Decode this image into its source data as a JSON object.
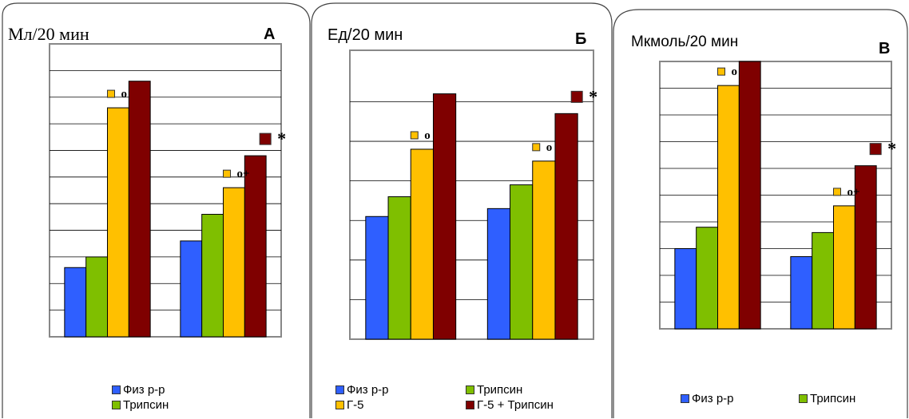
{
  "colors": {
    "fiz": "#2f5fff",
    "trypsin": "#7fbf00",
    "g5": "#ffc000",
    "g5_trypsin": "#7f0000"
  },
  "chart_data": [
    {
      "type": "bar",
      "panel_letter": "А",
      "unit_label": "Мл/20 мин",
      "ylim": [
        0,
        11
      ],
      "grid": true,
      "categories": [
        "",
        ""
      ],
      "series": [
        {
          "name": "Физ р-р",
          "color_key": "fiz",
          "values": [
            2.6,
            3.6
          ]
        },
        {
          "name": "Трипсин",
          "color_key": "trypsin",
          "values": [
            3.0,
            4.6
          ]
        },
        {
          "name": "Г-5",
          "color_key": "g5",
          "values": [
            8.6,
            5.6
          ]
        },
        {
          "name": "Г-5 + Трипсин",
          "color_key": "g5_trypsin",
          "values": [
            9.6,
            6.8
          ]
        }
      ],
      "annotations": [
        {
          "series": 2,
          "category": 0,
          "text": "о"
        },
        {
          "series": 3,
          "category": 1,
          "text": "*"
        },
        {
          "series": 2,
          "category": 1,
          "text": "о+"
        }
      ],
      "legend": [
        "Физ р-р",
        "Трипсин"
      ]
    },
    {
      "type": "bar",
      "panel_letter": "Б",
      "unit_label": "Ед/20 мин",
      "ylim": [
        0,
        7.3
      ],
      "grid": true,
      "categories": [
        "",
        ""
      ],
      "series": [
        {
          "name": "Физ р-р",
          "color_key": "fiz",
          "values": [
            3.1,
            3.3
          ]
        },
        {
          "name": "Трипсин",
          "color_key": "trypsin",
          "values": [
            3.6,
            3.9
          ]
        },
        {
          "name": "Г-5",
          "color_key": "g5",
          "values": [
            4.8,
            4.5
          ]
        },
        {
          "name": "Г-5 + Трипсин",
          "color_key": "g5_trypsin",
          "values": [
            6.2,
            5.7
          ]
        }
      ],
      "annotations": [
        {
          "series": 2,
          "category": 0,
          "text": "о"
        },
        {
          "series": 3,
          "category": 1,
          "text": "*"
        },
        {
          "series": 2,
          "category": 1,
          "text": "о"
        }
      ],
      "legend": [
        "Физ р-р",
        "Трипсин",
        "Г-5",
        "Г-5 + Трипсин"
      ]
    },
    {
      "type": "bar",
      "panel_letter": "В",
      "unit_label": "Мкмоль/20 мин",
      "ylim": [
        0,
        10
      ],
      "grid": true,
      "categories": [
        "",
        ""
      ],
      "series": [
        {
          "name": "Физ р-р",
          "color_key": "fiz",
          "values": [
            3.0,
            2.7
          ]
        },
        {
          "name": "Трипсин",
          "color_key": "trypsin",
          "values": [
            3.8,
            3.6
          ]
        },
        {
          "name": "Г-5",
          "color_key": "g5",
          "values": [
            9.1,
            4.6
          ]
        },
        {
          "name": "Г-5 + Трипсин",
          "color_key": "g5_trypsin",
          "values": [
            10.0,
            6.1
          ]
        }
      ],
      "annotations": [
        {
          "series": 2,
          "category": 0,
          "text": "о"
        },
        {
          "series": 3,
          "category": 1,
          "text": "*"
        },
        {
          "series": 2,
          "category": 1,
          "text": "о+"
        }
      ],
      "legend": [
        "Физ р-р",
        "Трипсин"
      ]
    }
  ]
}
